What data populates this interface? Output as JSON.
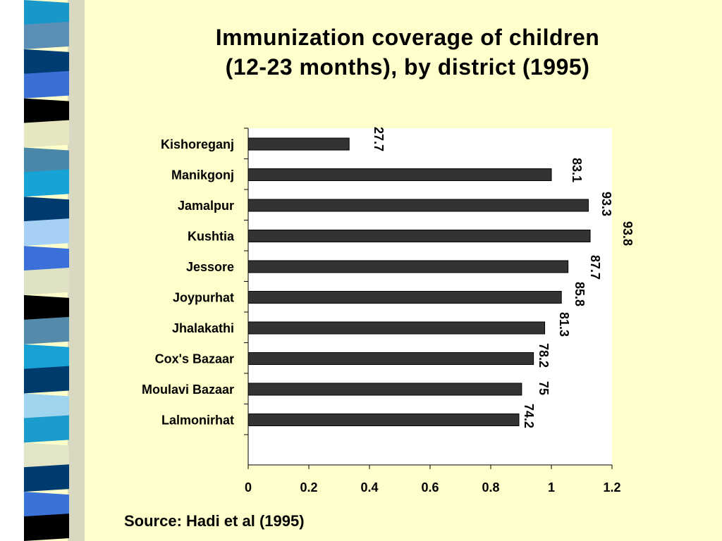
{
  "title_line1": "Immunization coverage of children",
  "title_line2": "(12-23 months), by district (1995)",
  "source": "Source: Hadi et al (1995)",
  "colors": {
    "background": "#ffffcc",
    "plot_area": "#ffffff",
    "bar": "#333333",
    "strip": [
      "#1a97c9",
      "#5c8fb5",
      "#003d73",
      "#3a6fd4",
      "#000000",
      "#e6e6c0",
      "#4b87a9",
      "#18a3d6",
      "#003a6e",
      "#a6d1f5",
      "#3b70d8",
      "#dfe2c4",
      "#000000",
      "#548aaa",
      "#18a1d5",
      "#003b6e",
      "#9fd3ee",
      "#1a9ccc",
      "#e2e6c6",
      "#003b70",
      "#3a72d7",
      "#000000"
    ]
  },
  "chart_data": {
    "type": "bar",
    "orientation": "horizontal",
    "categories": [
      "Kishoreganj",
      "Manikgonj",
      "Jamalpur",
      "Kushtia",
      "Jessore",
      "Joypurhat",
      "Jhalakathi",
      "Cox's Bazaar",
      "Moulavi Bazaar",
      "Lalmonirhat"
    ],
    "values": [
      0.333,
      1.0,
      1.122,
      1.128,
      1.055,
      1.033,
      0.978,
      0.941,
      0.902,
      0.893
    ],
    "data_labels": [
      "27.7",
      "83.1",
      "93.3",
      "93.8",
      "87.7",
      "85.8",
      "81.3",
      "78.2",
      "75",
      "74.2"
    ],
    "xticks": [
      "0",
      "0.2",
      "0.4",
      "0.6",
      "0.8",
      "1",
      "1.2"
    ],
    "xlim": [
      0,
      1.2
    ],
    "grid": false,
    "legend": "none"
  }
}
